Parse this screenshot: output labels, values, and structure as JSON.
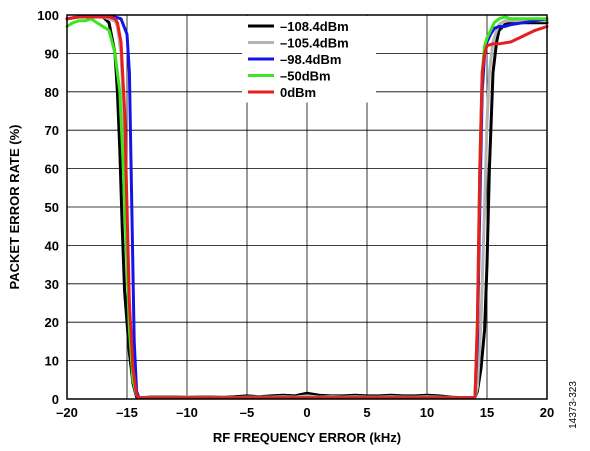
{
  "chart_data": {
    "type": "line",
    "title": "",
    "xlabel": "RF FREQUENCY ERROR (kHz)",
    "ylabel": "PACKET ERROR RATE (%)",
    "xlim": [
      -20,
      20
    ],
    "ylim": [
      0,
      100
    ],
    "xticks": [
      -20,
      -15,
      -10,
      -5,
      0,
      5,
      10,
      15,
      20
    ],
    "xtick_labels": [
      "–20",
      "–15",
      "–10",
      "–5",
      "0",
      "5",
      "10",
      "15",
      "20"
    ],
    "yticks": [
      0,
      10,
      20,
      30,
      40,
      50,
      60,
      70,
      80,
      90,
      100
    ],
    "ytick_labels": [
      "0",
      "10",
      "20",
      "30",
      "40",
      "50",
      "60",
      "70",
      "80",
      "90",
      "100"
    ],
    "grid": true,
    "legend_position": "top-center",
    "figure_id": "14373-323",
    "series": [
      {
        "name": "–108.4dBm",
        "color": "#000000",
        "x": [
          -20,
          -19,
          -18,
          -17,
          -16.5,
          -16,
          -15.8,
          -15.6,
          -15.4,
          -15.2,
          -15,
          -14.8,
          -14.5,
          -14.2,
          -14,
          -13,
          -12,
          -11,
          -10,
          -9,
          -8,
          -7,
          -6,
          -5,
          -4,
          -3,
          -2,
          -1,
          0,
          1,
          2,
          3,
          4,
          5,
          6,
          7,
          8,
          9,
          10,
          11,
          12,
          13,
          13.5,
          13.8,
          14,
          14.2,
          14.5,
          14.8,
          15,
          15.2,
          15.5,
          15.8,
          16,
          16.5,
          17,
          18,
          19,
          20
        ],
        "y": [
          99,
          99.5,
          99.5,
          99.5,
          98,
          90,
          80,
          65,
          45,
          28,
          20,
          12,
          4,
          0.5,
          0.3,
          0.5,
          0.5,
          0.5,
          0.5,
          0.5,
          0.5,
          0.5,
          0.6,
          0.8,
          0.6,
          0.8,
          1,
          0.8,
          1.5,
          1,
          0.8,
          0.8,
          1,
          0.8,
          0.8,
          1,
          0.8,
          0.8,
          1,
          0.8,
          0.5,
          0.3,
          0.3,
          0.3,
          0.5,
          2,
          8,
          18,
          35,
          60,
          85,
          93,
          96,
          97.5,
          98,
          98,
          98,
          98
        ]
      },
      {
        "name": "–105.4dBm",
        "color": "#b4b4b4",
        "x": [
          -20,
          -19,
          -18,
          -17,
          -16,
          -15.8,
          -15.5,
          -15.2,
          -15,
          -14.8,
          -14.5,
          -14.2,
          -14,
          -13,
          -12,
          -11,
          -10,
          -9,
          -8,
          -7,
          -6,
          -5,
          -4,
          -3,
          -2,
          -1,
          0,
          1,
          2,
          3,
          4,
          5,
          6,
          7,
          8,
          9,
          10,
          11,
          12,
          13,
          13.5,
          13.8,
          14,
          14.2,
          14.5,
          14.8,
          15,
          15.2,
          15.5,
          15.8,
          16,
          16.5,
          17,
          18,
          19,
          20
        ],
        "y": [
          99,
          99.5,
          99.5,
          99.5,
          98.5,
          97,
          90,
          70,
          45,
          20,
          5,
          1,
          0.4,
          0.4,
          0.4,
          0.4,
          0.5,
          0.4,
          0.4,
          0.5,
          0.4,
          0.5,
          0.5,
          0.5,
          0.6,
          0.5,
          0.8,
          0.5,
          0.6,
          0.5,
          0.6,
          0.5,
          0.5,
          0.6,
          0.5,
          0.5,
          0.6,
          0.5,
          0.4,
          0.3,
          0.3,
          0.3,
          0.5,
          3,
          20,
          50,
          72,
          85,
          93,
          96,
          97.5,
          98.5,
          98.5,
          98.5,
          98.5,
          98.5
        ]
      },
      {
        "name": "–98.4dBm",
        "color": "#1414e6",
        "x": [
          -20,
          -19,
          -18,
          -17,
          -16.5,
          -16,
          -15.5,
          -15,
          -14.8,
          -14.6,
          -14.4,
          -14.2,
          -14,
          -13,
          -12,
          -11,
          -10,
          -9,
          -8,
          -7,
          -6,
          -5,
          -4,
          -3,
          -2,
          -1,
          0,
          1,
          2,
          3,
          4,
          5,
          6,
          7,
          8,
          9,
          10,
          11,
          12,
          13,
          13.5,
          14,
          14.2,
          14.4,
          14.6,
          14.8,
          15,
          15.3,
          15.6,
          16,
          16.5,
          17,
          18,
          19,
          20
        ],
        "y": [
          99,
          99.5,
          99.5,
          99.5,
          99.5,
          99.5,
          99,
          95,
          85,
          50,
          15,
          2,
          0.3,
          0.3,
          0.3,
          0.3,
          0.3,
          0.3,
          0.3,
          0.3,
          0.3,
          0.3,
          0.3,
          0.3,
          0.3,
          0.3,
          0.3,
          0.3,
          0.3,
          0.3,
          0.3,
          0.3,
          0.3,
          0.3,
          0.3,
          0.3,
          0.3,
          0.3,
          0.3,
          0.3,
          0.3,
          0.5,
          15,
          50,
          80,
          90,
          93,
          95,
          96.5,
          97,
          97,
          97.5,
          98,
          98.5,
          99
        ]
      },
      {
        "name": "–50dBm",
        "color": "#3ce61e",
        "x": [
          -20,
          -19.5,
          -19,
          -18.5,
          -18,
          -17.5,
          -17,
          -16.5,
          -16,
          -15.6,
          -15.3,
          -15,
          -14.8,
          -14.5,
          -14.2,
          -14,
          -13,
          -12,
          -11,
          -10,
          -9,
          -8,
          -7,
          -6,
          -5,
          -4,
          -3,
          -2,
          -1,
          0,
          1,
          2,
          3,
          4,
          5,
          6,
          7,
          8,
          9,
          10,
          11,
          12,
          13,
          13.5,
          14,
          14.2,
          14.4,
          14.6,
          14.8,
          15,
          15.3,
          15.6,
          16,
          16.5,
          17,
          18,
          19,
          20
        ],
        "y": [
          97,
          98,
          98.5,
          98.5,
          99,
          98,
          97,
          96,
          90,
          80,
          60,
          35,
          18,
          5,
          1,
          0.3,
          0.3,
          0.3,
          0.3,
          0.3,
          0.3,
          0.3,
          0.3,
          0.3,
          0.3,
          0.3,
          0.3,
          0.3,
          0.3,
          0.3,
          0.3,
          0.3,
          0.3,
          0.3,
          0.3,
          0.3,
          0.3,
          0.3,
          0.3,
          0.3,
          0.3,
          0.3,
          0.3,
          0.3,
          0.5,
          20,
          60,
          85,
          92,
          94,
          96,
          98,
          99,
          99.5,
          99,
          99,
          99,
          99
        ]
      },
      {
        "name": "0dBm",
        "color": "#e61e1e",
        "x": [
          -20,
          -19,
          -18,
          -17,
          -16.5,
          -16,
          -15.8,
          -15.5,
          -15.2,
          -15,
          -14.8,
          -14.5,
          -14.2,
          -14,
          -13,
          -12,
          -11,
          -10,
          -9,
          -8,
          -7,
          -6,
          -5,
          -4,
          -3,
          -2,
          -1,
          0,
          1,
          2,
          3,
          4,
          5,
          6,
          7,
          8,
          9,
          10,
          11,
          12,
          13,
          13.5,
          14,
          14.2,
          14.4,
          14.6,
          14.8,
          15,
          15.5,
          16,
          17,
          18,
          19,
          20
        ],
        "y": [
          99,
          99.5,
          99.5,
          99.5,
          99.5,
          99,
          98,
          93,
          75,
          50,
          25,
          8,
          1,
          0.3,
          0.3,
          0.3,
          0.3,
          0.3,
          0.3,
          0.3,
          0.3,
          0.3,
          0.3,
          0.3,
          0.3,
          0.3,
          0.3,
          0.3,
          0.3,
          0.3,
          0.3,
          0.3,
          0.3,
          0.3,
          0.3,
          0.3,
          0.3,
          0.3,
          0.3,
          0.3,
          0.3,
          0.3,
          0.5,
          20,
          60,
          85,
          90,
          92,
          92.5,
          92.5,
          93,
          94.5,
          96,
          97
        ]
      }
    ]
  }
}
